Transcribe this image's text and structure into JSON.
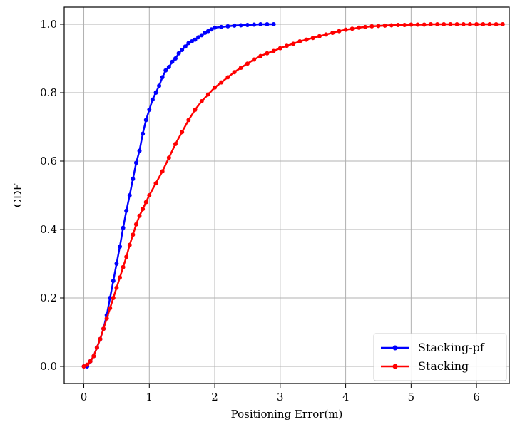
{
  "chart_data": {
    "type": "line",
    "title": "",
    "xlabel": "Positioning Error(m)",
    "ylabel": "CDF",
    "xlim": [
      -0.3,
      6.5
    ],
    "ylim": [
      -0.05,
      1.05
    ],
    "x_ticks": [
      0,
      1,
      2,
      3,
      4,
      5,
      6
    ],
    "y_ticks": [
      0.0,
      0.2,
      0.4,
      0.6,
      0.8,
      1.0
    ],
    "x_tick_labels": [
      "0",
      "1",
      "2",
      "3",
      "4",
      "5",
      "6"
    ],
    "y_tick_labels": [
      "0.0",
      "0.2",
      "0.4",
      "0.6",
      "0.8",
      "1.0"
    ],
    "grid": true,
    "legend_position": "bottom-right",
    "series": [
      {
        "name": "Stacking-pf",
        "color": "#0000ff",
        "marker": "circle",
        "points": [
          [
            0.0,
            0.0
          ],
          [
            0.05,
            0.0
          ],
          [
            0.1,
            0.015
          ],
          [
            0.15,
            0.03
          ],
          [
            0.2,
            0.055
          ],
          [
            0.25,
            0.08
          ],
          [
            0.3,
            0.11
          ],
          [
            0.35,
            0.15
          ],
          [
            0.4,
            0.2
          ],
          [
            0.45,
            0.25
          ],
          [
            0.5,
            0.3
          ],
          [
            0.55,
            0.35
          ],
          [
            0.6,
            0.405
          ],
          [
            0.65,
            0.455
          ],
          [
            0.7,
            0.5
          ],
          [
            0.75,
            0.548
          ],
          [
            0.8,
            0.595
          ],
          [
            0.85,
            0.63
          ],
          [
            0.9,
            0.68
          ],
          [
            0.95,
            0.72
          ],
          [
            1.0,
            0.75
          ],
          [
            1.05,
            0.78
          ],
          [
            1.1,
            0.8
          ],
          [
            1.15,
            0.82
          ],
          [
            1.2,
            0.845
          ],
          [
            1.25,
            0.865
          ],
          [
            1.3,
            0.875
          ],
          [
            1.35,
            0.89
          ],
          [
            1.4,
            0.9
          ],
          [
            1.45,
            0.915
          ],
          [
            1.5,
            0.925
          ],
          [
            1.55,
            0.935
          ],
          [
            1.6,
            0.945
          ],
          [
            1.65,
            0.95
          ],
          [
            1.7,
            0.955
          ],
          [
            1.75,
            0.962
          ],
          [
            1.8,
            0.968
          ],
          [
            1.85,
            0.975
          ],
          [
            1.9,
            0.98
          ],
          [
            1.95,
            0.985
          ],
          [
            2.0,
            0.99
          ],
          [
            2.1,
            0.992
          ],
          [
            2.2,
            0.994
          ],
          [
            2.3,
            0.996
          ],
          [
            2.4,
            0.997
          ],
          [
            2.5,
            0.998
          ],
          [
            2.6,
            0.999
          ],
          [
            2.7,
            1.0
          ],
          [
            2.8,
            1.0
          ],
          [
            2.9,
            1.0
          ]
        ]
      },
      {
        "name": "Stacking",
        "color": "#ff0000",
        "marker": "circle",
        "points": [
          [
            0.0,
            0.0
          ],
          [
            0.05,
            0.005
          ],
          [
            0.1,
            0.015
          ],
          [
            0.15,
            0.03
          ],
          [
            0.2,
            0.055
          ],
          [
            0.25,
            0.08
          ],
          [
            0.3,
            0.11
          ],
          [
            0.35,
            0.14
          ],
          [
            0.4,
            0.17
          ],
          [
            0.45,
            0.2
          ],
          [
            0.5,
            0.23
          ],
          [
            0.55,
            0.26
          ],
          [
            0.6,
            0.29
          ],
          [
            0.65,
            0.32
          ],
          [
            0.7,
            0.355
          ],
          [
            0.75,
            0.385
          ],
          [
            0.8,
            0.415
          ],
          [
            0.85,
            0.44
          ],
          [
            0.9,
            0.46
          ],
          [
            0.95,
            0.48
          ],
          [
            1.0,
            0.5
          ],
          [
            1.1,
            0.535
          ],
          [
            1.2,
            0.57
          ],
          [
            1.3,
            0.61
          ],
          [
            1.4,
            0.65
          ],
          [
            1.5,
            0.685
          ],
          [
            1.6,
            0.72
          ],
          [
            1.7,
            0.75
          ],
          [
            1.8,
            0.775
          ],
          [
            1.9,
            0.795
          ],
          [
            2.0,
            0.815
          ],
          [
            2.1,
            0.83
          ],
          [
            2.2,
            0.845
          ],
          [
            2.3,
            0.86
          ],
          [
            2.4,
            0.873
          ],
          [
            2.5,
            0.885
          ],
          [
            2.6,
            0.897
          ],
          [
            2.7,
            0.907
          ],
          [
            2.8,
            0.915
          ],
          [
            2.9,
            0.922
          ],
          [
            3.0,
            0.93
          ],
          [
            3.1,
            0.937
          ],
          [
            3.2,
            0.943
          ],
          [
            3.3,
            0.95
          ],
          [
            3.4,
            0.955
          ],
          [
            3.5,
            0.96
          ],
          [
            3.6,
            0.965
          ],
          [
            3.7,
            0.97
          ],
          [
            3.8,
            0.975
          ],
          [
            3.9,
            0.98
          ],
          [
            4.0,
            0.984
          ],
          [
            4.1,
            0.987
          ],
          [
            4.2,
            0.99
          ],
          [
            4.3,
            0.992
          ],
          [
            4.4,
            0.994
          ],
          [
            4.5,
            0.995
          ],
          [
            4.6,
            0.996
          ],
          [
            4.7,
            0.997
          ],
          [
            4.8,
            0.998
          ],
          [
            4.9,
            0.998
          ],
          [
            5.0,
            0.999
          ],
          [
            5.1,
            0.999
          ],
          [
            5.2,
            0.999
          ],
          [
            5.3,
            1.0
          ],
          [
            5.4,
            1.0
          ],
          [
            5.5,
            1.0
          ],
          [
            5.6,
            1.0
          ],
          [
            5.7,
            1.0
          ],
          [
            5.8,
            1.0
          ],
          [
            5.9,
            1.0
          ],
          [
            6.0,
            1.0
          ],
          [
            6.1,
            1.0
          ],
          [
            6.2,
            1.0
          ],
          [
            6.3,
            1.0
          ],
          [
            6.4,
            1.0
          ]
        ]
      }
    ]
  }
}
